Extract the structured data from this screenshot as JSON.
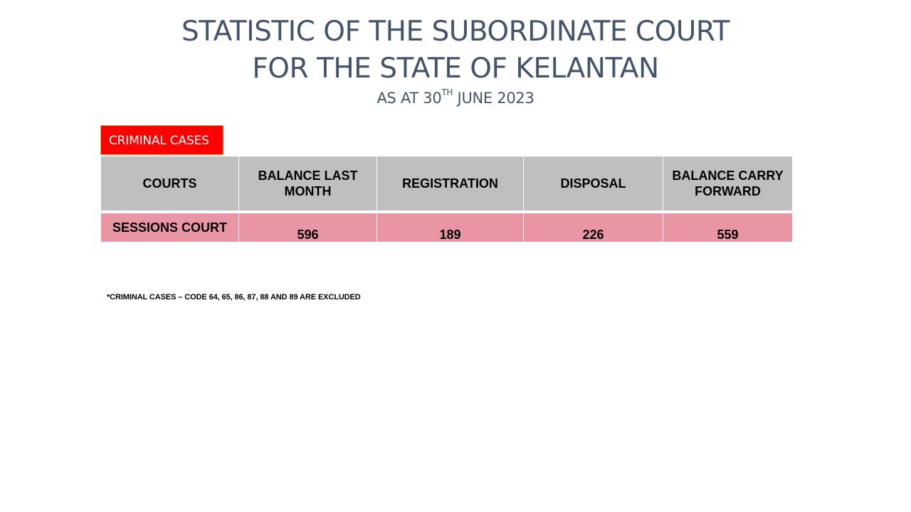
{
  "header": {
    "title_line1": "STATISTIC OF THE SUBORDINATE COURT",
    "title_line2": "FOR THE STATE OF KELANTAN",
    "subtitle_prefix": "AS AT 30",
    "subtitle_sup": "TH",
    "subtitle_suffix": " JUNE 2023"
  },
  "section": {
    "label": "CRIMINAL CASES",
    "badge_color": "#ff0000"
  },
  "table": {
    "header_color": "#bfbfbf",
    "row_color": "#e995a4",
    "columns": [
      "COURTS",
      "BALANCE LAST MONTH",
      "REGISTRATION",
      "DISPOSAL",
      "BALANCE CARRY FORWARD"
    ],
    "rows": [
      {
        "court": "SESSIONS COURT",
        "balance_last_month": "596",
        "registration": "189",
        "disposal": "226",
        "balance_carry_forward": "559"
      }
    ]
  },
  "footnote": "*CRIMINAL CASES – CODE 64, 65, 86, 87, 88 AND 89 ARE EXCLUDED"
}
